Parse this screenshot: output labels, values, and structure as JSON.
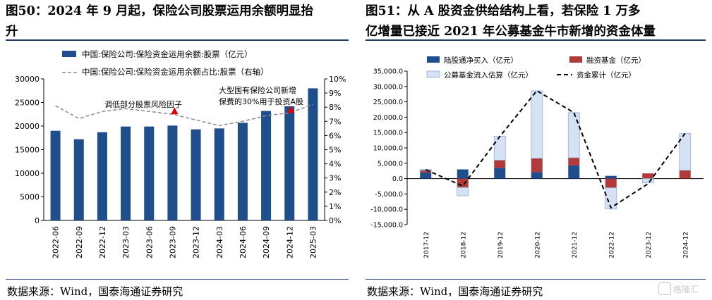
{
  "left": {
    "title_line1": "图50：2024 年 9 月起，保险公司股票运用余额明显抬",
    "title_line2": "升",
    "source": "数据来源：Wind，国泰海通证券研究"
  },
  "right": {
    "title_line1": "图51：从 A 股资金供给结构上看，若保险 1 万多",
    "title_line2": "亿增量已接近 2021 年公募基金牛市新增的资金体量",
    "source": "数据来源：Wind，国泰海通证券研究"
  },
  "watermark": "格隆汇",
  "colors": {
    "navy": "#1f4e8c",
    "red": "#b33a3a",
    "lightblue": "#d5e2f3",
    "lightblue_edge": "#8fb0d8",
    "gray_line": "#8c8c8c",
    "marker_red": "#e00000",
    "rule": "#1f3864"
  },
  "chart_data": [
    {
      "type": "bar",
      "categories": [
        "2022-06",
        "2022-09",
        "2022-12",
        "2023-03",
        "2023-06",
        "2023-09",
        "2023-12",
        "2024-03",
        "2024-06",
        "2024-09",
        "2024-12",
        "2025-03"
      ],
      "series": [
        {
          "name": "中国:保险公司:保险资金运用余额:股票（亿元）",
          "type": "bar",
          "axis": "left",
          "values": [
            19000,
            17200,
            18700,
            19900,
            19900,
            20100,
            19300,
            19500,
            20700,
            23200,
            24200,
            28000
          ]
        },
        {
          "name": "中国:保险公司:保险资金运用余额占比:股票（右轴）",
          "type": "line",
          "axis": "right",
          "style": "dashed",
          "values": [
            8.1,
            7.2,
            7.7,
            7.9,
            7.7,
            7.5,
            7.1,
            6.7,
            7.0,
            7.4,
            7.6,
            8.2
          ]
        }
      ],
      "ylim_left": [
        0,
        30000
      ],
      "yticks_left": [
        "0",
        "5000",
        "10000",
        "15000",
        "20000",
        "25000",
        "30000"
      ],
      "ylim_right": [
        0,
        10
      ],
      "yticks_right": [
        "0%",
        "1%",
        "2%",
        "3%",
        "4%",
        "5%",
        "6%",
        "7%",
        "8%",
        "9%",
        "10%"
      ],
      "annotations": [
        {
          "text": "调低部分股票风险因子",
          "at_index": 5
        },
        {
          "text_line1": "大型国有保险公司新增",
          "text_line2": "保费的30%用于投资A股",
          "at_index": 10
        }
      ],
      "legend_position": "top-left",
      "grid": false
    },
    {
      "type": "bar",
      "stacked": true,
      "categories": [
        "2017-12",
        "2018-12",
        "2019-12",
        "2020-12",
        "2021-12",
        "2022-12",
        "2023-12",
        "2024-12"
      ],
      "series": [
        {
          "name": "陆股通净买入（亿元）",
          "type": "bar",
          "color": "navy",
          "values": [
            2000,
            3000,
            3500,
            2100,
            4300,
            900,
            0,
            0
          ]
        },
        {
          "name": "融资基金（亿元）",
          "type": "bar",
          "color": "red",
          "values": [
            700,
            -2900,
            2500,
            4500,
            2500,
            -3000,
            1700,
            2700
          ]
        },
        {
          "name": "公募基金流入估算（亿元）",
          "type": "bar",
          "color": "lightblue",
          "values": [
            300,
            -2700,
            7800,
            22000,
            14700,
            -6900,
            -1400,
            12000
          ]
        },
        {
          "name": "资金累计（亿元）",
          "type": "line",
          "style": "dashed",
          "values": [
            2900,
            -2400,
            13700,
            28600,
            21500,
            -9500,
            -1700,
            14700
          ]
        }
      ],
      "ylim": [
        -15000,
        35000
      ],
      "yticks": [
        "-15,000.0",
        "-10,000.0",
        "-5,000.0",
        "0.0",
        "5,000.0",
        "10,000.0",
        "15,000.0",
        "20,000.0",
        "25,000.0",
        "30,000.0",
        "35,000.0"
      ],
      "legend_position": "top",
      "grid": false
    }
  ]
}
